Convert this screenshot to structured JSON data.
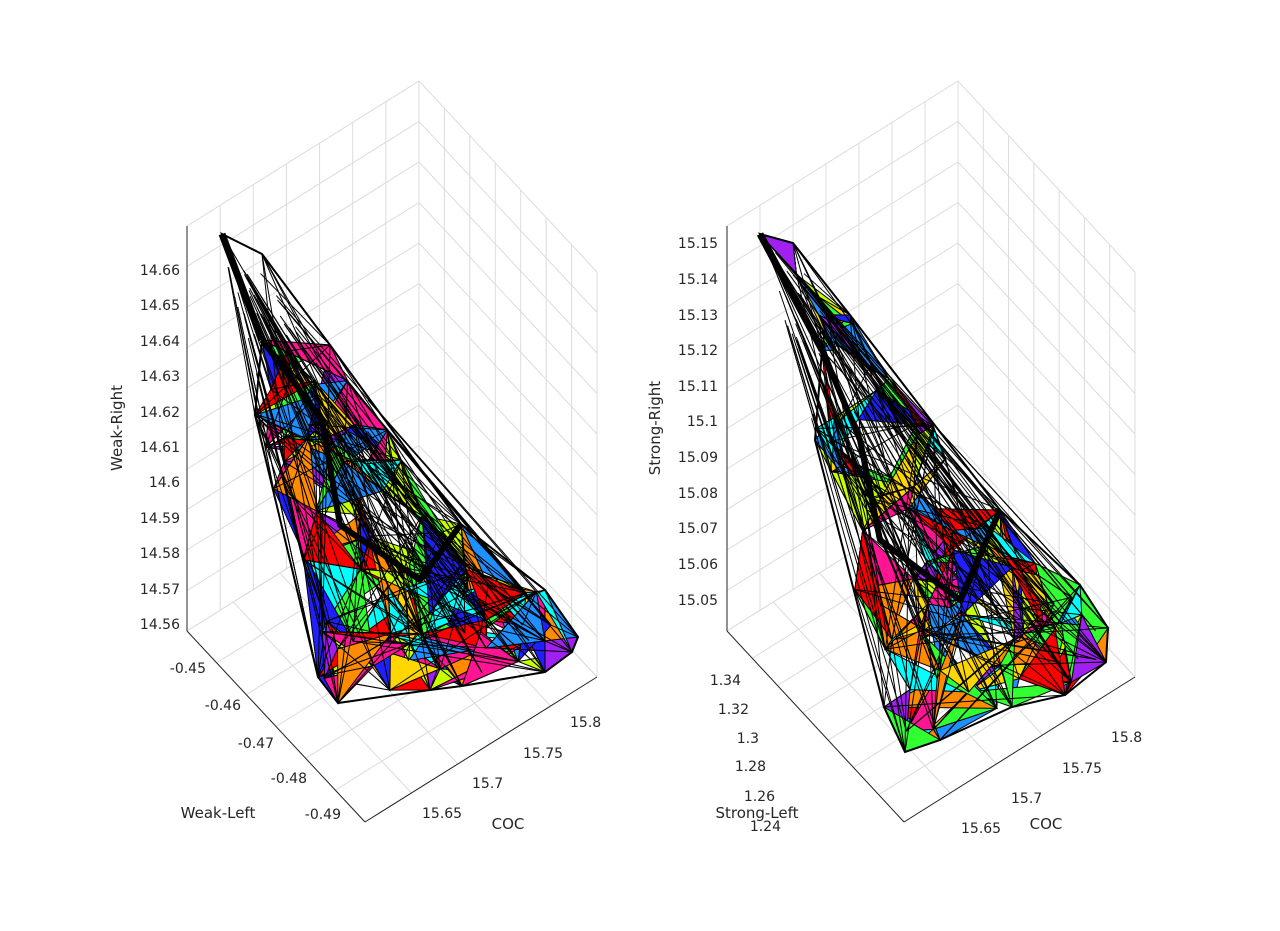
{
  "chart_data": [
    {
      "type": "3d-surface",
      "title": "",
      "xlabel": "COC",
      "ylabel": "Weak-Left",
      "zlabel": "Weak-Right",
      "x_ticks": [
        "15.65",
        "15.7",
        "15.75",
        "15.8"
      ],
      "y_ticks": [
        "-0.45",
        "-0.46",
        "-0.47",
        "-0.48",
        "-0.49"
      ],
      "z_ticks": [
        "14.56",
        "14.57",
        "14.58",
        "14.59",
        "14.6",
        "14.61",
        "14.62",
        "14.63",
        "14.64",
        "14.65",
        "14.66"
      ],
      "xlim": [
        15.62,
        15.82
      ],
      "ylim": [
        -0.495,
        -0.445
      ],
      "zlim": [
        14.555,
        14.665
      ],
      "grid": true,
      "face_colors": [
        "#ff0000",
        "#ff8c00",
        "#ffd700",
        "#c8ff00",
        "#32ff32",
        "#00ffff",
        "#1e90ff",
        "#2020ff",
        "#a020f0",
        "#ff1493"
      ]
    },
    {
      "type": "3d-surface",
      "title": "",
      "xlabel": "COC",
      "ylabel": "Strong-Left",
      "zlabel": "Strong-Right",
      "x_ticks": [
        "15.65",
        "15.7",
        "15.75",
        "15.8"
      ],
      "y_ticks": [
        "1.34",
        "1.32",
        "1.3",
        "1.28",
        "1.26",
        "1.24"
      ],
      "z_ticks": [
        "15.05",
        "15.06",
        "15.07",
        "15.08",
        "15.09",
        "15.1",
        "15.11",
        "15.12",
        "15.13",
        "15.14",
        "15.15"
      ],
      "xlim": [
        15.62,
        15.82
      ],
      "ylim": [
        1.23,
        1.35
      ],
      "zlim": [
        15.04,
        15.155
      ],
      "grid": true,
      "face_colors": [
        "#ff0000",
        "#ff8c00",
        "#ffd700",
        "#c8ff00",
        "#32ff32",
        "#00ffff",
        "#1e90ff",
        "#2020ff",
        "#a020f0",
        "#ff1493"
      ]
    }
  ]
}
